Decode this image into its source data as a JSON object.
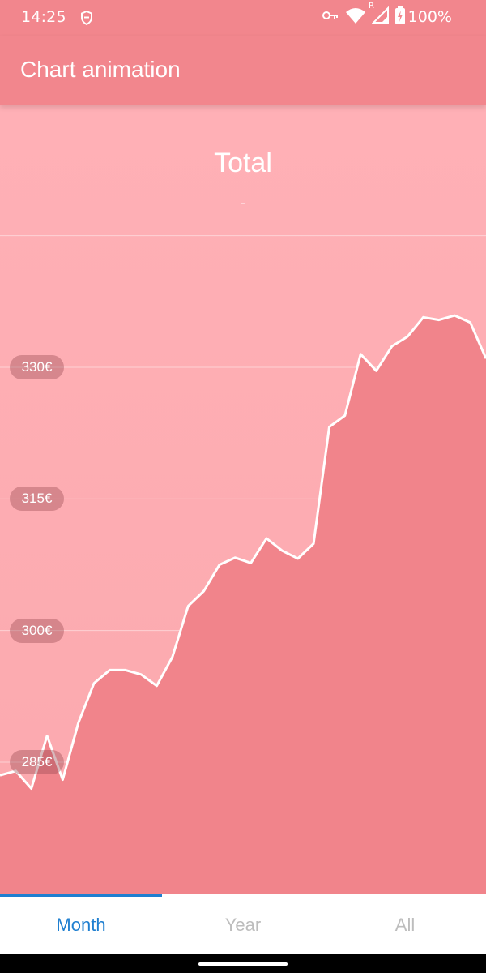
{
  "status_bar": {
    "time": "14:25",
    "left_icon": "shield-icon",
    "right_icons": [
      "key-icon",
      "wifi-icon",
      "signal-icon",
      "battery-icon"
    ],
    "signal_badge": "R",
    "battery": "100%"
  },
  "app_bar": {
    "title": "Chart animation"
  },
  "header": {
    "title": "Total",
    "value": "-"
  },
  "colors": {
    "primary": "#f2868d",
    "background_top": "#ffb0b6",
    "area_fill": "#f1848b",
    "line": "#ffffff",
    "tab_active": "#1f7fd0",
    "tab_inactive": "#bdbdbd"
  },
  "chart_data": {
    "type": "area",
    "y_ticks": [
      "285€",
      "300€",
      "315€",
      "330€"
    ],
    "y_tick_values": [
      285,
      300,
      315,
      330
    ],
    "ylim": [
      270,
      345
    ],
    "grid": true,
    "x": [
      0,
      1,
      2,
      3,
      4,
      5,
      6,
      7,
      8,
      9,
      10,
      11,
      12,
      13,
      14,
      15,
      16,
      17,
      18,
      19,
      20,
      21,
      22,
      23,
      24,
      25,
      26,
      27,
      28,
      29,
      30,
      31
    ],
    "values": [
      283.5,
      284.0,
      282.0,
      288.0,
      283.0,
      289.5,
      294.0,
      295.5,
      295.5,
      295.0,
      293.7,
      297.0,
      302.8,
      304.5,
      307.5,
      308.3,
      307.7,
      310.5,
      309.1,
      308.2,
      309.9,
      323.2,
      324.5,
      331.5,
      329.6,
      332.4,
      333.5,
      335.7,
      335.4,
      335.9,
      335.1,
      331.0
    ]
  },
  "tabs": [
    {
      "label": "Month",
      "active": true
    },
    {
      "label": "Year",
      "active": false
    },
    {
      "label": "All",
      "active": false
    }
  ]
}
